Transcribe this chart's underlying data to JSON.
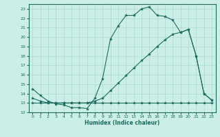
{
  "line1_x": [
    0,
    1,
    2,
    3,
    4,
    5,
    6,
    7,
    8,
    9,
    10,
    11,
    12,
    13,
    14,
    15,
    16,
    17,
    18,
    19,
    20,
    21,
    22,
    23
  ],
  "line1_y": [
    14.5,
    13.8,
    13.2,
    12.9,
    12.8,
    12.5,
    12.5,
    12.4,
    13.5,
    15.6,
    19.8,
    21.2,
    22.3,
    22.3,
    23.0,
    23.2,
    22.3,
    22.2,
    21.8,
    20.5,
    20.8,
    18.0,
    14.0,
    13.3
  ],
  "line2_x": [
    0,
    1,
    2,
    3,
    4,
    5,
    6,
    7,
    8,
    9,
    10,
    11,
    12,
    13,
    14,
    15,
    16,
    17,
    18,
    19,
    20,
    21,
    22,
    23
  ],
  "line2_y": [
    13.0,
    13.0,
    13.0,
    13.0,
    13.0,
    13.0,
    13.0,
    13.0,
    13.0,
    13.0,
    13.0,
    13.0,
    13.0,
    13.0,
    13.0,
    13.0,
    13.0,
    13.0,
    13.0,
    13.0,
    13.0,
    13.0,
    13.0,
    13.0
  ],
  "line3_x": [
    0,
    1,
    2,
    3,
    4,
    5,
    6,
    7,
    8,
    9,
    10,
    11,
    12,
    13,
    14,
    15,
    16,
    17,
    18,
    19,
    20,
    21,
    22,
    23
  ],
  "line3_y": [
    13.5,
    13.2,
    13.0,
    13.0,
    13.0,
    13.0,
    13.0,
    13.0,
    13.2,
    13.5,
    14.3,
    15.1,
    15.9,
    16.7,
    17.5,
    18.2,
    19.0,
    19.7,
    20.3,
    20.5,
    20.8,
    18.0,
    14.0,
    13.3
  ],
  "color": "#1a6b5a",
  "bg_color": "#cceee8",
  "grid_color": "#aad8d2",
  "xlabel": "Humidex (Indice chaleur)",
  "xlim": [
    -0.5,
    23.5
  ],
  "ylim": [
    12.0,
    23.5
  ],
  "yticks": [
    12,
    13,
    14,
    15,
    16,
    17,
    18,
    19,
    20,
    21,
    22,
    23
  ],
  "xticks": [
    0,
    1,
    2,
    3,
    4,
    5,
    6,
    7,
    8,
    9,
    10,
    11,
    12,
    13,
    14,
    15,
    16,
    17,
    18,
    19,
    20,
    21,
    22,
    23
  ],
  "marker": "*",
  "markersize": 3,
  "linewidth": 0.8
}
